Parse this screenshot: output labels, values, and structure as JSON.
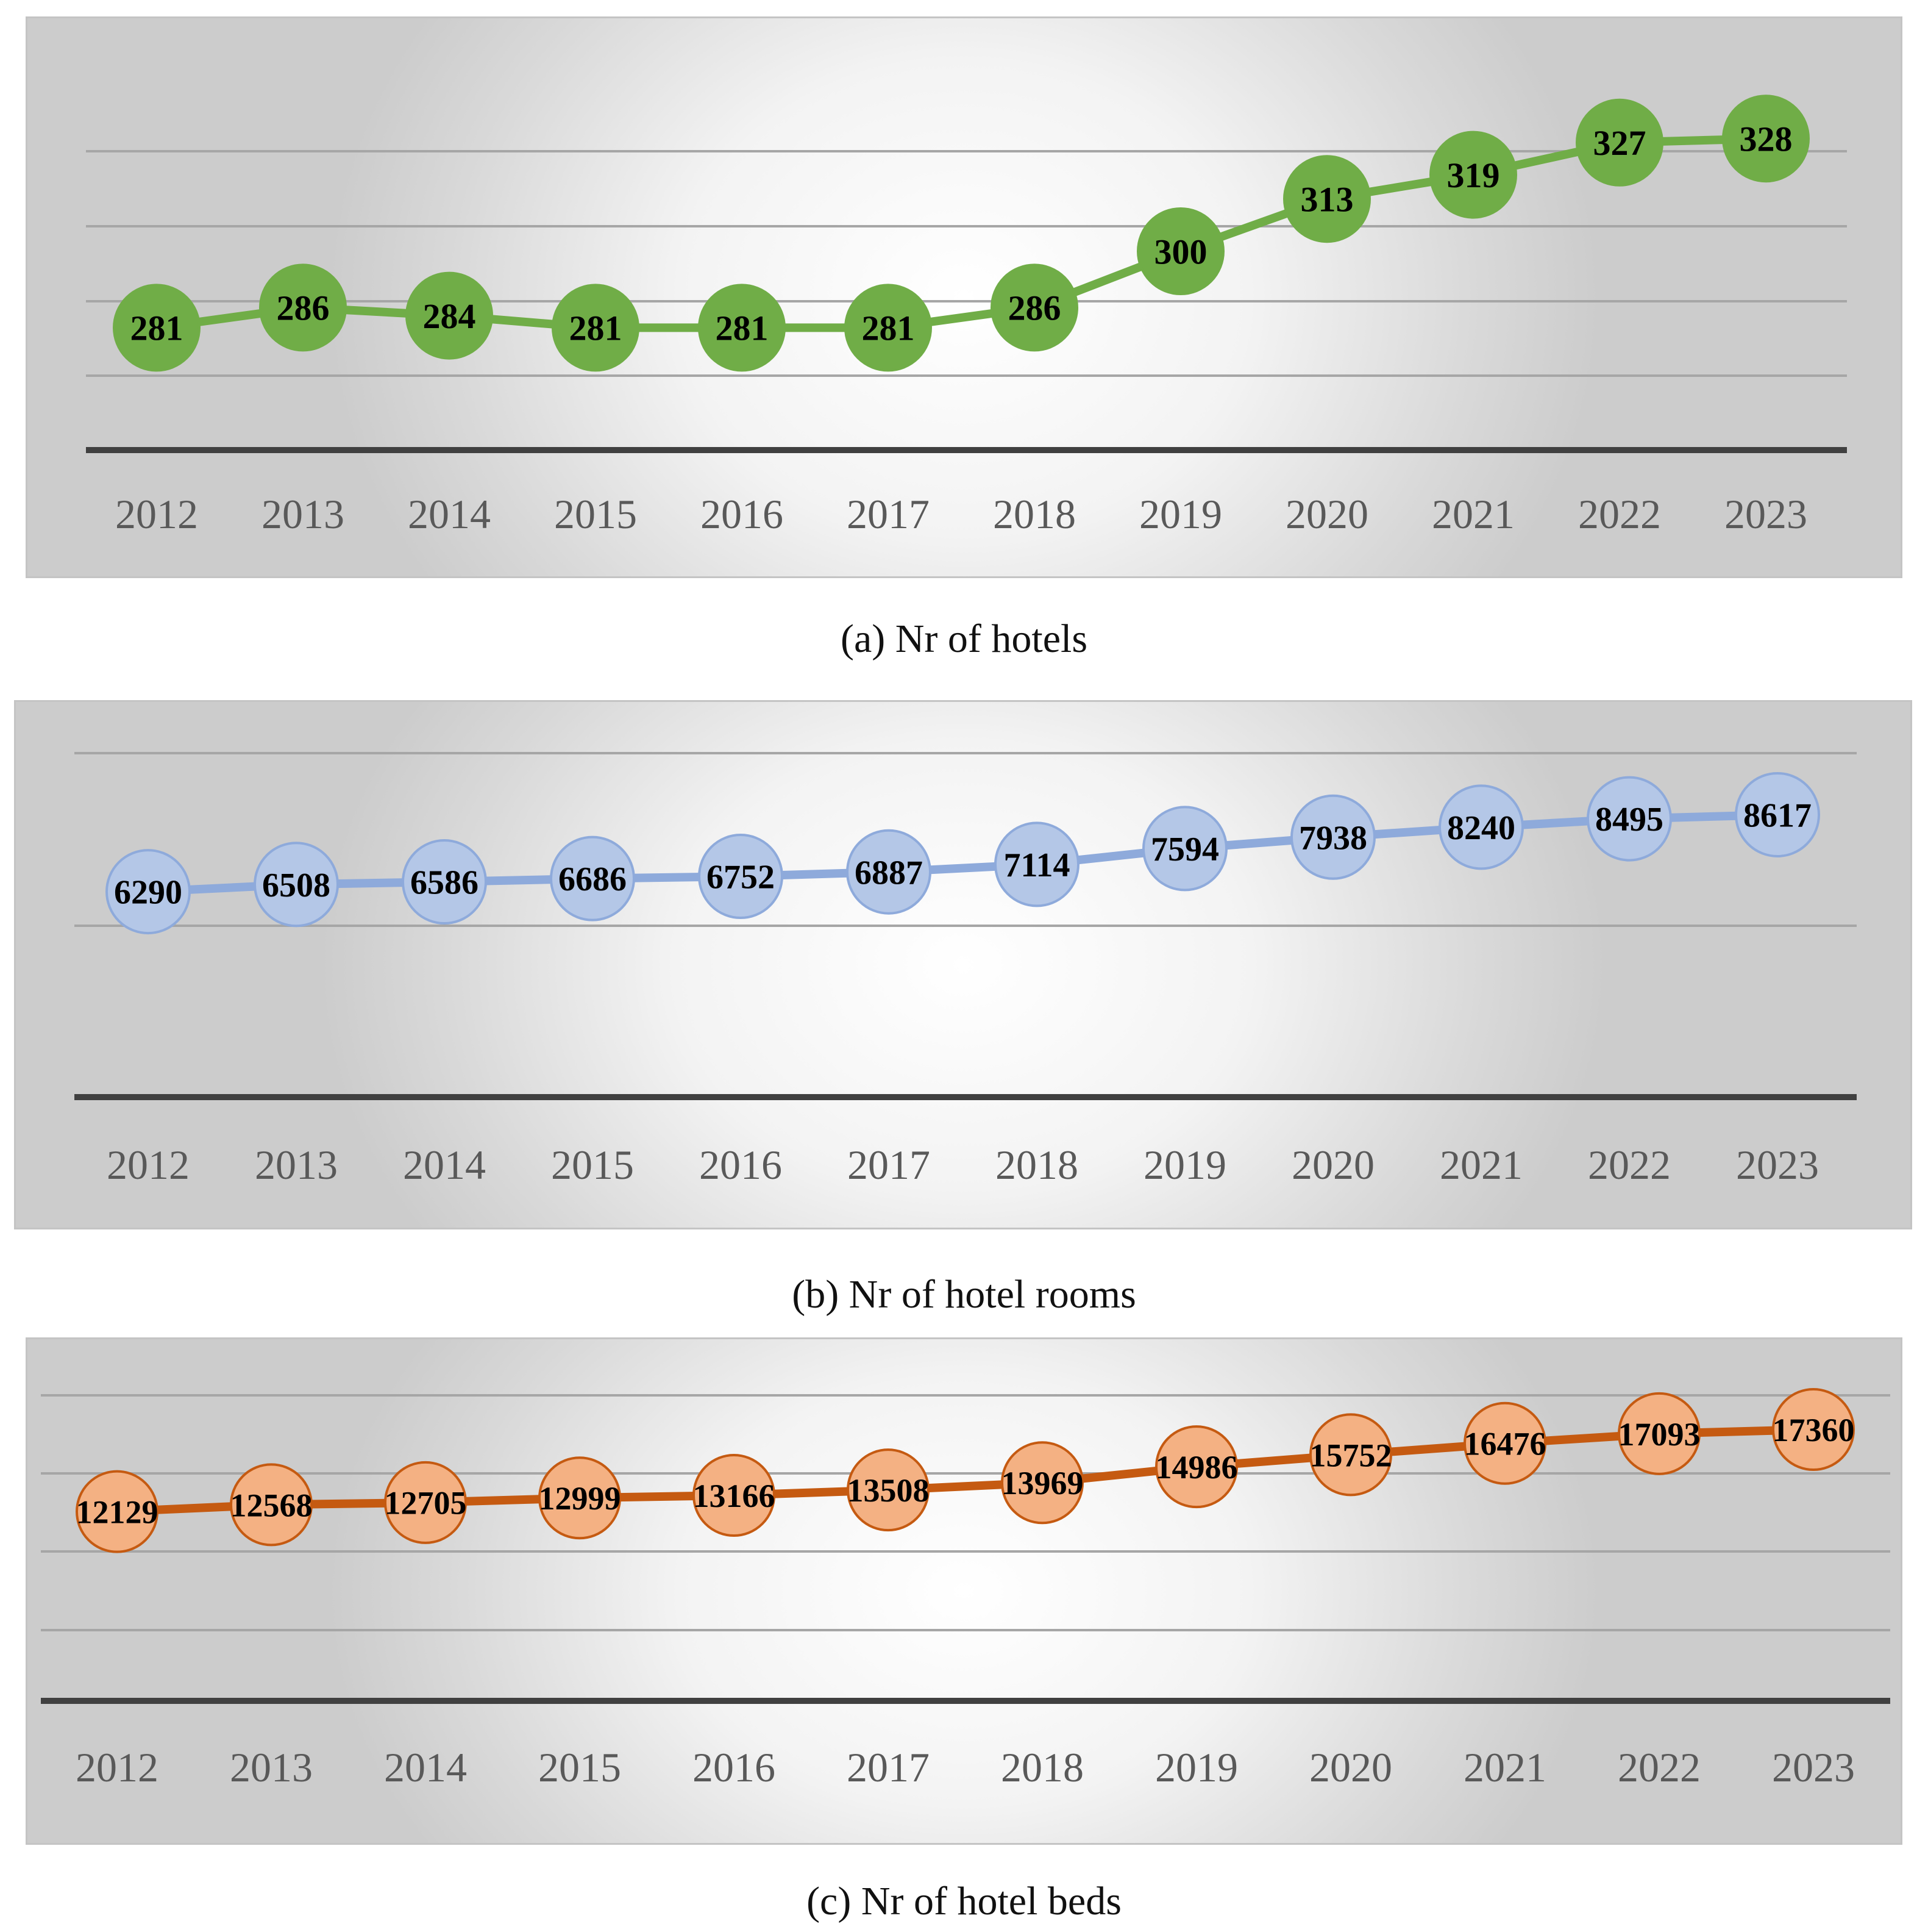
{
  "chart_data": [
    {
      "type": "line",
      "title": "(a) Nr of hotels",
      "categories": [
        "2012",
        "2013",
        "2014",
        "2015",
        "2016",
        "2017",
        "2018",
        "2019",
        "2020",
        "2021",
        "2022",
        "2023"
      ],
      "series": [
        {
          "name": "Nr of hotels",
          "values": [
            281,
            286,
            284,
            281,
            281,
            281,
            286,
            300,
            313,
            319,
            327,
            328
          ]
        }
      ],
      "ylim": [
        250,
        340
      ],
      "grid": true,
      "color": "#70ad47",
      "marker_stroke": "#70ad47",
      "line_color": "#70ad47"
    },
    {
      "type": "line",
      "title": "(b) Nr of hotel rooms",
      "categories": [
        "2012",
        "2013",
        "2014",
        "2015",
        "2016",
        "2017",
        "2018",
        "2019",
        "2020",
        "2021",
        "2022",
        "2023"
      ],
      "series": [
        {
          "name": "Nr of hotel rooms",
          "values": [
            6290,
            6508,
            6586,
            6686,
            6752,
            6887,
            7114,
            7594,
            7938,
            8240,
            8495,
            8617
          ]
        }
      ],
      "ylim": [
        0,
        10000
      ],
      "grid": true,
      "color": "#b4c7e7",
      "marker_stroke": "#8eaadb",
      "line_color": "#8eaadb"
    },
    {
      "type": "line",
      "title": "(c) Nr of hotel beds",
      "categories": [
        "2012",
        "2013",
        "2014",
        "2015",
        "2016",
        "2017",
        "2018",
        "2019",
        "2020",
        "2021",
        "2022",
        "2023"
      ],
      "series": [
        {
          "name": "Nr of hotel beds",
          "values": [
            12129,
            12568,
            12705,
            12999,
            13166,
            13508,
            13969,
            14986,
            15752,
            16476,
            17093,
            17360
          ]
        }
      ],
      "ylim": [
        0,
        20000
      ],
      "grid": true,
      "color": "#f4b183",
      "marker_stroke": "#c55a11",
      "line_color": "#c55a11"
    }
  ]
}
